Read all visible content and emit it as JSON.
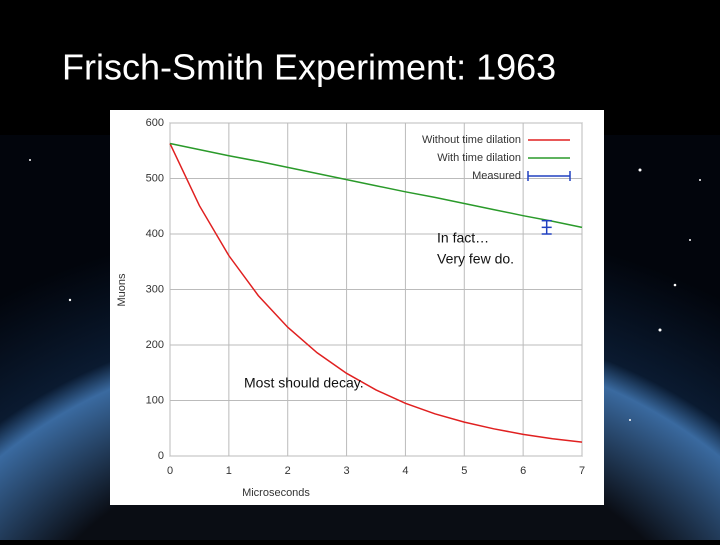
{
  "slide_title": "Frisch-Smith Experiment:  1963",
  "chart_data": {
    "type": "line",
    "x_label": "Microseconds",
    "y_label": "Muons",
    "x": [
      0,
      0.5,
      1,
      1.5,
      2,
      2.5,
      3,
      3.5,
      4,
      4.5,
      5,
      5.5,
      6,
      6.5,
      7
    ],
    "series": [
      {
        "name": "Without time dilation",
        "color": "#e02020",
        "values": [
          563,
          451,
          361,
          289,
          232,
          186,
          149,
          119,
          95,
          76,
          61,
          49,
          39,
          31,
          25
        ]
      },
      {
        "name": "With time dilation",
        "color": "#2a9a2a",
        "values": [
          563,
          552,
          541,
          531,
          520,
          509,
          498,
          487,
          476,
          466,
          455,
          444,
          433,
          423,
          412
        ]
      }
    ],
    "measured": {
      "name": "Measured",
      "color": "#2040c0",
      "x": [
        6.4
      ],
      "values": [
        412
      ],
      "errors": [
        12
      ]
    },
    "xlim": [
      0,
      7
    ],
    "xticks": [
      0,
      1,
      2,
      3,
      4,
      5,
      6,
      7
    ],
    "ylim": [
      0,
      600
    ],
    "yticks": [
      0,
      100,
      200,
      300,
      400,
      500,
      600
    ],
    "grid": true,
    "legend": "upper right",
    "annotations": [
      "In fact…",
      "Very few do.",
      "Most should decay."
    ]
  }
}
